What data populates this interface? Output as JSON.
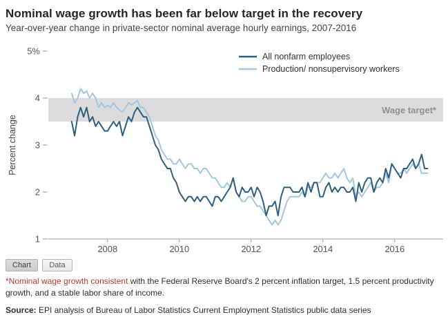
{
  "theme": {
    "series_dark": "#2e5e7e",
    "series_light": "#a2c7e0",
    "band_fill": "#dcdcdc",
    "band_label_color": "#909090",
    "axis_color": "#999999",
    "tick_label_color": "#555555",
    "footnote_highlight": "#b23c35"
  },
  "tabs": [
    {
      "label": "Chart",
      "active": true
    },
    {
      "label": "Data",
      "active": false
    }
  ],
  "footnote": {
    "highlight": "*Nominal wage growth consistent",
    "rest": " with the Federal Reserve Board's 2 percent inflation target, 1.5 percent productivity growth, and a stable labor share of income."
  },
  "source": {
    "label": "Source:",
    "text": " EPI analysis of Bureau of Labor Statistics Current Employment Statistics public data series"
  },
  "chart_data": {
    "type": "line",
    "title": "Nominal wage growth has been far below target in the recovery",
    "subtitle": "Year-over-year change in private-sector nominal average hourly earnings, 2007-2016",
    "ylabel": "Percent change",
    "xlabel": "",
    "ylim": [
      1,
      5
    ],
    "yticks": [
      1,
      2,
      3,
      4,
      5
    ],
    "ytick_labels": [
      "1",
      "2",
      "3",
      "4",
      "5%"
    ],
    "xlim": [
      2006.35,
      2017.35
    ],
    "xticks": [
      2008,
      2010,
      2012,
      2014,
      2016
    ],
    "grid": false,
    "legend_position": "top-right",
    "band": {
      "label": "Wage target*",
      "from": 3.5,
      "to": 4.0
    },
    "x_start": 2007.0,
    "x_step": "monthly",
    "series": [
      {
        "name": "All nonfarm employees",
        "color_key": "series_dark",
        "values": [
          3.5,
          3.2,
          3.6,
          3.8,
          3.6,
          3.8,
          3.5,
          3.6,
          3.4,
          3.5,
          3.4,
          3.3,
          3.3,
          3.4,
          3.5,
          3.4,
          3.5,
          3.2,
          3.4,
          3.6,
          3.5,
          3.7,
          3.8,
          3.7,
          3.6,
          3.6,
          3.4,
          3.2,
          3.0,
          2.9,
          2.7,
          2.6,
          2.5,
          2.5,
          2.3,
          2.2,
          2.0,
          1.9,
          1.8,
          1.9,
          1.9,
          1.8,
          1.9,
          1.8,
          1.9,
          1.9,
          1.8,
          1.7,
          1.9,
          1.9,
          1.8,
          1.9,
          2.0,
          2.1,
          2.3,
          2.0,
          1.9,
          2.1,
          2.0,
          2.0,
          2.1,
          1.9,
          2.1,
          2.0,
          1.8,
          1.5,
          1.7,
          1.7,
          1.8,
          1.5,
          1.9,
          2.1,
          2.1,
          2.1,
          2.0,
          2.0,
          2.0,
          2.1,
          1.9,
          2.2,
          2.0,
          2.2,
          2.2,
          1.9,
          1.9,
          2.1,
          2.2,
          2.0,
          2.1,
          2.0,
          2.1,
          2.1,
          2.0,
          2.0,
          2.1,
          1.8,
          2.2,
          2.0,
          2.2,
          2.3,
          2.3,
          2.0,
          2.2,
          2.3,
          2.2,
          2.5,
          2.3,
          2.6,
          2.5,
          2.4,
          2.3,
          2.5,
          2.5,
          2.6,
          2.7,
          2.5,
          2.6,
          2.8,
          2.5,
          2.5
        ]
      },
      {
        "name": "Production/ nonsupervisory workers",
        "color_key": "series_light",
        "values": [
          4.1,
          3.9,
          4.0,
          4.2,
          4.1,
          4.15,
          4.0,
          4.1,
          4.0,
          3.8,
          3.9,
          3.8,
          3.85,
          3.8,
          3.9,
          3.8,
          3.75,
          3.7,
          3.8,
          3.9,
          3.85,
          3.9,
          3.95,
          3.8,
          3.8,
          3.7,
          3.6,
          3.4,
          3.2,
          3.1,
          2.9,
          2.8,
          2.7,
          2.7,
          2.6,
          2.6,
          2.7,
          2.6,
          2.5,
          2.6,
          2.6,
          2.5,
          2.5,
          2.4,
          2.5,
          2.5,
          2.4,
          2.3,
          2.3,
          2.2,
          2.1,
          2.1,
          2.2,
          2.1,
          2.3,
          2.0,
          1.9,
          1.8,
          1.8,
          1.9,
          1.9,
          1.8,
          1.7,
          1.7,
          1.6,
          1.5,
          1.4,
          1.3,
          1.4,
          1.3,
          1.4,
          1.6,
          1.8,
          1.9,
          1.9,
          1.9,
          1.9,
          2.0,
          1.9,
          2.1,
          2.1,
          2.2,
          2.2,
          2.2,
          2.3,
          2.4,
          2.3,
          2.3,
          2.4,
          2.3,
          2.4,
          2.5,
          2.3,
          2.2,
          2.3,
          1.9,
          2.0,
          1.9,
          2.0,
          2.1,
          2.2,
          2.0,
          2.1,
          2.1,
          2.2,
          2.4,
          2.2,
          2.6,
          2.5,
          2.4,
          2.4,
          2.5,
          2.4,
          2.5,
          2.6,
          2.5,
          2.6,
          2.4,
          2.4,
          2.4
        ]
      }
    ]
  }
}
